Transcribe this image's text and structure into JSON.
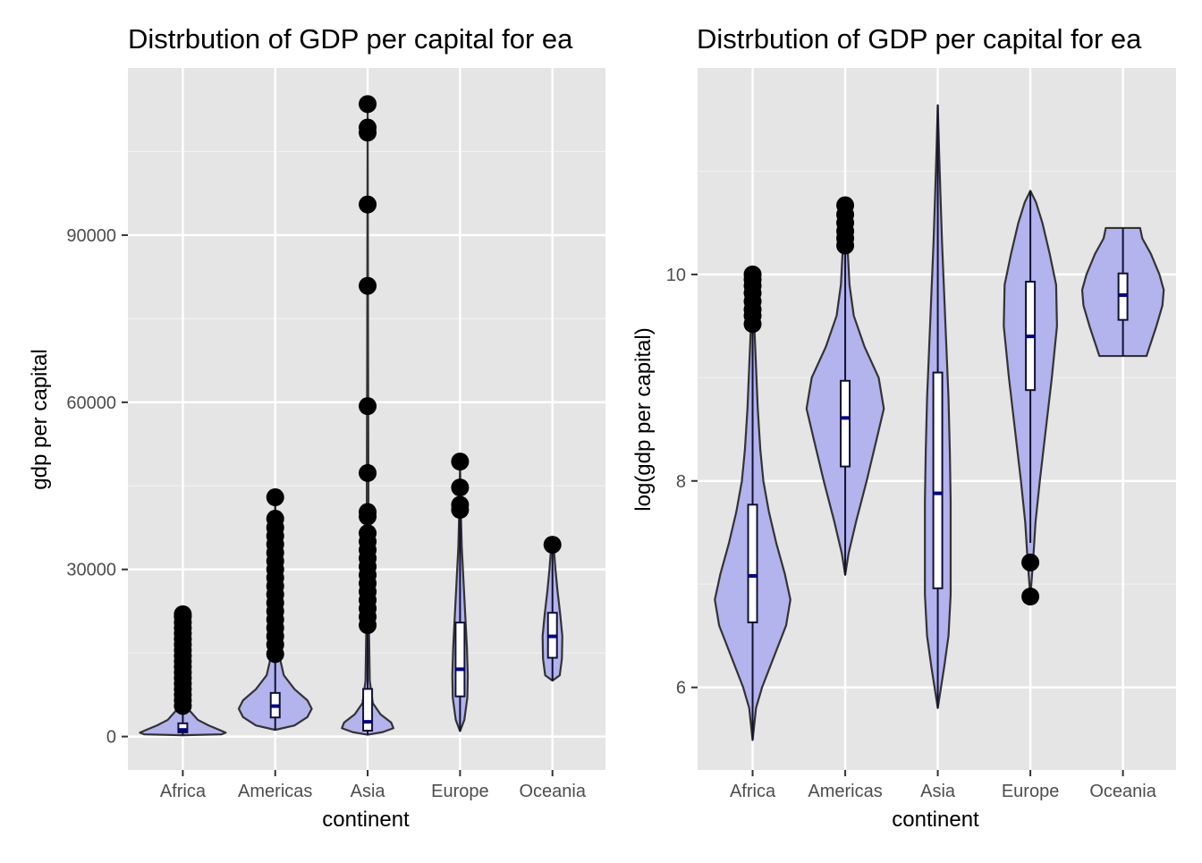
{
  "chart_data": [
    {
      "type": "violin",
      "title": "Distrbution of GDP per capital for ea",
      "xlabel": "continent",
      "ylabel": "gdp per capital",
      "categories": [
        "Africa",
        "Americas",
        "Asia",
        "Europe",
        "Oceania"
      ],
      "ylim": [
        -6000,
        120000
      ],
      "yticks": [
        0,
        30000,
        60000,
        90000
      ],
      "ytick_labels": [
        "0",
        "30000",
        "60000",
        "90000"
      ],
      "grid": true,
      "fill_color": "#b3b3ed",
      "panel_color": "#e5e5e5",
      "box_fill": "#ffffff",
      "median_color": "#00008b",
      "violins": [
        {
          "category": "Africa",
          "min": 241,
          "max": 21951,
          "profile": [
            [
              241,
              0.0
            ],
            [
              400,
              0.9
            ],
            [
              700,
              1.0
            ],
            [
              1200,
              0.85
            ],
            [
              2000,
              0.6
            ],
            [
              3000,
              0.35
            ],
            [
              5000,
              0.12
            ],
            [
              8000,
              0.05
            ],
            [
              12000,
              0.03
            ],
            [
              16000,
              0.02
            ],
            [
              21951,
              0.0
            ]
          ]
        },
        {
          "category": "Americas",
          "min": 1202,
          "max": 42952,
          "profile": [
            [
              1202,
              0.0
            ],
            [
              2000,
              0.45
            ],
            [
              3500,
              0.75
            ],
            [
              5000,
              0.85
            ],
            [
              6500,
              0.75
            ],
            [
              8500,
              0.45
            ],
            [
              11000,
              0.2
            ],
            [
              15000,
              0.08
            ],
            [
              22000,
              0.04
            ],
            [
              32000,
              0.02
            ],
            [
              42952,
              0.0
            ]
          ]
        },
        {
          "category": "Asia",
          "min": 331,
          "max": 113523,
          "profile": [
            [
              331,
              0.0
            ],
            [
              800,
              0.35
            ],
            [
              1500,
              0.6
            ],
            [
              2500,
              0.55
            ],
            [
              4000,
              0.3
            ],
            [
              6000,
              0.12
            ],
            [
              10000,
              0.05
            ],
            [
              20000,
              0.03
            ],
            [
              40000,
              0.02
            ],
            [
              70000,
              0.01
            ],
            [
              113523,
              0.0
            ]
          ]
        },
        {
          "category": "Europe",
          "min": 974,
          "max": 49357,
          "profile": [
            [
              974,
              0.0
            ],
            [
              3000,
              0.1
            ],
            [
              7000,
              0.17
            ],
            [
              11000,
              0.18
            ],
            [
              16000,
              0.16
            ],
            [
              22000,
              0.12
            ],
            [
              28000,
              0.08
            ],
            [
              34000,
              0.04
            ],
            [
              40000,
              0.02
            ],
            [
              49357,
              0.0
            ]
          ]
        },
        {
          "category": "Oceania",
          "min": 10040,
          "max": 34435,
          "profile": [
            [
              10040,
              0.0
            ],
            [
              11000,
              0.17
            ],
            [
              14000,
              0.22
            ],
            [
              18000,
              0.23
            ],
            [
              22000,
              0.18
            ],
            [
              26000,
              0.12
            ],
            [
              30000,
              0.07
            ],
            [
              33000,
              0.04
            ],
            [
              34435,
              0.0
            ]
          ]
        }
      ],
      "boxes": [
        {
          "category": "Africa",
          "q1": 761,
          "median": 1192,
          "q3": 2377,
          "whisker_low": 241,
          "whisker_high": 4800
        },
        {
          "category": "Americas",
          "q1": 3428,
          "median": 5466,
          "q3": 7830,
          "whisker_low": 1202,
          "whisker_high": 14400
        },
        {
          "category": "Asia",
          "q1": 1057,
          "median": 2647,
          "q3": 8549,
          "whisker_low": 331,
          "whisker_high": 19700
        },
        {
          "category": "Europe",
          "q1": 7213,
          "median": 12082,
          "q3": 20461,
          "whisker_low": 974,
          "whisker_high": 40000
        },
        {
          "category": "Oceania",
          "q1": 14142,
          "median": 17983,
          "q3": 22214,
          "whisker_low": 10040,
          "whisker_high": 34435
        }
      ],
      "outliers": [
        {
          "category": "Africa",
          "values": [
            5500,
            6500,
            7500,
            8500,
            9500,
            10500,
            11500,
            12500,
            13500,
            14500,
            15500,
            16500,
            17500,
            18500,
            19500,
            20500,
            21500,
            21951
          ]
        },
        {
          "category": "Americas",
          "values": [
            14800,
            16500,
            18000,
            19500,
            21000,
            22500,
            24000,
            25500,
            27000,
            28500,
            30000,
            31500,
            33000,
            34500,
            36000,
            37500,
            39100,
            42952
          ]
        },
        {
          "category": "Asia",
          "values": [
            20000,
            21500,
            23000,
            24500,
            26000,
            27500,
            29000,
            30500,
            32000,
            33500,
            35000,
            36500,
            39500,
            40300,
            47300,
            59300,
            80900,
            95500,
            108400,
            109300,
            113523
          ]
        },
        {
          "category": "Europe",
          "values": [
            40700,
            41600,
            44700,
            49357
          ]
        },
        {
          "category": "Oceania",
          "values": [
            34435
          ]
        }
      ]
    },
    {
      "type": "violin",
      "title": "Distrbution of GDP per capital for ea",
      "xlabel": "continent",
      "ylabel": "log(gdp per capital)",
      "categories": [
        "Africa",
        "Americas",
        "Asia",
        "Europe",
        "Oceania"
      ],
      "ylim": [
        5.2,
        12.0
      ],
      "yticks": [
        6,
        8,
        10
      ],
      "ytick_labels": [
        "6",
        "8",
        "10"
      ],
      "grid": true,
      "fill_color": "#b3b3ed",
      "panel_color": "#e5e5e5",
      "box_fill": "#ffffff",
      "median_color": "#00008b",
      "violins": [
        {
          "category": "Africa",
          "min": 5.49,
          "max": 10.0,
          "profile": [
            [
              5.49,
              0.0
            ],
            [
              5.8,
              0.08
            ],
            [
              6.0,
              0.22
            ],
            [
              6.3,
              0.5
            ],
            [
              6.6,
              0.78
            ],
            [
              6.85,
              0.88
            ],
            [
              7.1,
              0.75
            ],
            [
              7.4,
              0.55
            ],
            [
              7.7,
              0.38
            ],
            [
              8.0,
              0.25
            ],
            [
              8.3,
              0.18
            ],
            [
              8.7,
              0.12
            ],
            [
              9.1,
              0.08
            ],
            [
              9.5,
              0.04
            ],
            [
              10.0,
              0.0
            ]
          ]
        },
        {
          "category": "Americas",
          "min": 7.09,
          "max": 10.67,
          "profile": [
            [
              7.09,
              0.0
            ],
            [
              7.3,
              0.08
            ],
            [
              7.6,
              0.25
            ],
            [
              8.0,
              0.5
            ],
            [
              8.4,
              0.73
            ],
            [
              8.7,
              0.9
            ],
            [
              9.0,
              0.78
            ],
            [
              9.3,
              0.45
            ],
            [
              9.6,
              0.2
            ],
            [
              9.9,
              0.1
            ],
            [
              10.3,
              0.05
            ],
            [
              10.67,
              0.0
            ]
          ]
        },
        {
          "category": "Asia",
          "min": 5.8,
          "max": 11.64,
          "profile": [
            [
              5.8,
              0.0
            ],
            [
              6.2,
              0.15
            ],
            [
              6.5,
              0.25
            ],
            [
              6.9,
              0.3
            ],
            [
              7.3,
              0.3
            ],
            [
              7.8,
              0.3
            ],
            [
              8.3,
              0.28
            ],
            [
              8.8,
              0.25
            ],
            [
              9.3,
              0.2
            ],
            [
              9.8,
              0.15
            ],
            [
              10.3,
              0.1
            ],
            [
              10.8,
              0.06
            ],
            [
              11.2,
              0.03
            ],
            [
              11.64,
              0.0
            ]
          ]
        },
        {
          "category": "Europe",
          "min": 6.88,
          "max": 10.81,
          "profile": [
            [
              6.88,
              0.0
            ],
            [
              7.2,
              0.06
            ],
            [
              7.6,
              0.12
            ],
            [
              8.0,
              0.22
            ],
            [
              8.5,
              0.36
            ],
            [
              9.0,
              0.5
            ],
            [
              9.5,
              0.62
            ],
            [
              9.9,
              0.6
            ],
            [
              10.2,
              0.45
            ],
            [
              10.5,
              0.28
            ],
            [
              10.7,
              0.13
            ],
            [
              10.81,
              0.0
            ]
          ]
        },
        {
          "category": "Oceania",
          "min": 9.21,
          "max": 10.45,
          "profile": [
            [
              9.21,
              0.55
            ],
            [
              9.3,
              0.62
            ],
            [
              9.5,
              0.78
            ],
            [
              9.7,
              0.92
            ],
            [
              9.85,
              0.95
            ],
            [
              10.0,
              0.85
            ],
            [
              10.2,
              0.65
            ],
            [
              10.35,
              0.45
            ],
            [
              10.45,
              0.4
            ]
          ]
        }
      ],
      "boxes": [
        {
          "category": "Africa",
          "q1": 6.63,
          "median": 7.08,
          "q3": 7.77,
          "whisker_low": 5.49,
          "whisker_high": 9.45
        },
        {
          "category": "Americas",
          "q1": 8.14,
          "median": 8.61,
          "q3": 8.97,
          "whisker_low": 7.09,
          "whisker_high": 10.2
        },
        {
          "category": "Asia",
          "q1": 6.96,
          "median": 7.88,
          "q3": 9.05,
          "whisker_low": 5.8,
          "whisker_high": 11.64
        },
        {
          "category": "Europe",
          "q1": 8.88,
          "median": 9.4,
          "q3": 9.93,
          "whisker_low": 7.4,
          "whisker_high": 10.81
        },
        {
          "category": "Oceania",
          "q1": 9.56,
          "median": 9.8,
          "q3": 10.01,
          "whisker_low": 9.21,
          "whisker_high": 10.45
        }
      ],
      "outliers": [
        {
          "category": "Africa",
          "values": [
            9.52,
            9.6,
            9.66,
            9.74,
            9.82,
            9.89,
            9.95,
            10.0
          ]
        },
        {
          "category": "Americas",
          "values": [
            10.28,
            10.35,
            10.42,
            10.5,
            10.58,
            10.67
          ]
        },
        {
          "category": "Asia",
          "values": []
        },
        {
          "category": "Europe",
          "values": [
            6.88,
            7.21
          ]
        },
        {
          "category": "Oceania",
          "values": []
        }
      ]
    }
  ]
}
